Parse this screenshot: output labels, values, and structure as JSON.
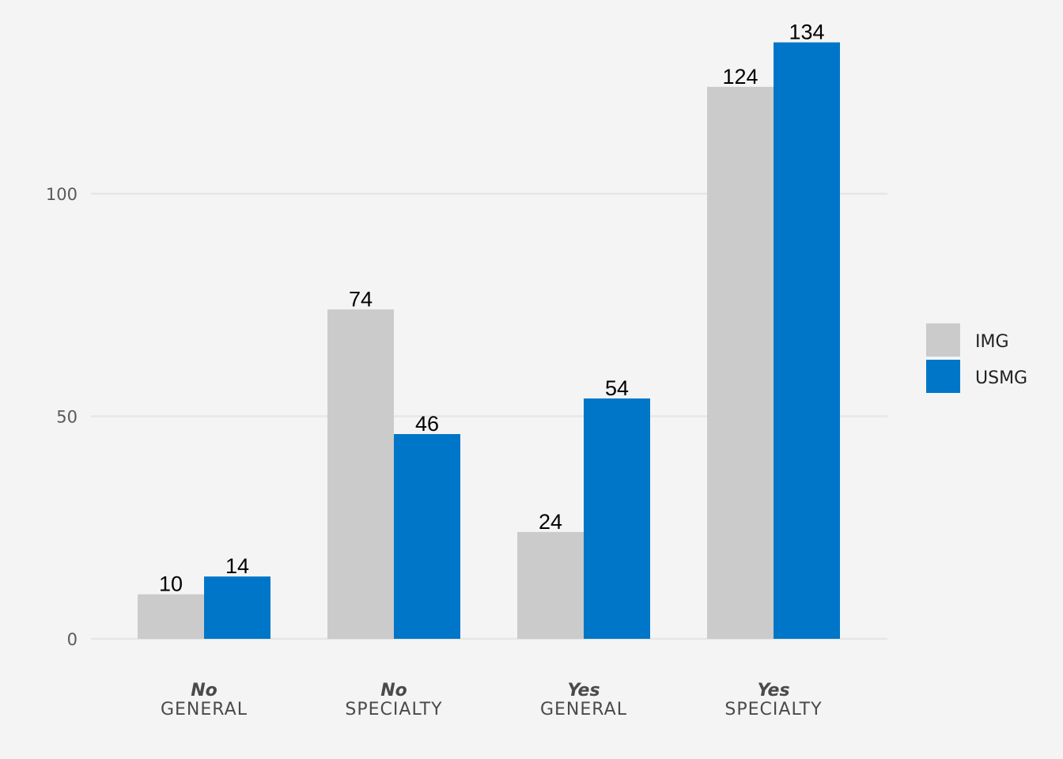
{
  "chart_data": {
    "type": "bar",
    "title": "",
    "xlabel": "",
    "ylabel": "",
    "ylim": [
      0,
      140
    ],
    "yticks": [
      "0",
      "50",
      "100"
    ],
    "ytick_values": [
      0,
      50,
      100
    ],
    "grid": true,
    "legend_position": "right",
    "categories": [
      {
        "line1": "No",
        "line2": "GENERAL"
      },
      {
        "line1": "No",
        "line2": "SPECIALTY"
      },
      {
        "line1": "Yes",
        "line2": "GENERAL"
      },
      {
        "line1": "Yes",
        "line2": "SPECIALTY"
      }
    ],
    "series": [
      {
        "name": "IMG",
        "color": "#cbcbcb",
        "values": [
          10,
          74,
          24,
          124
        ]
      },
      {
        "name": "USMG",
        "color": "#0076c8",
        "values": [
          14,
          46,
          54,
          134
        ]
      }
    ]
  }
}
